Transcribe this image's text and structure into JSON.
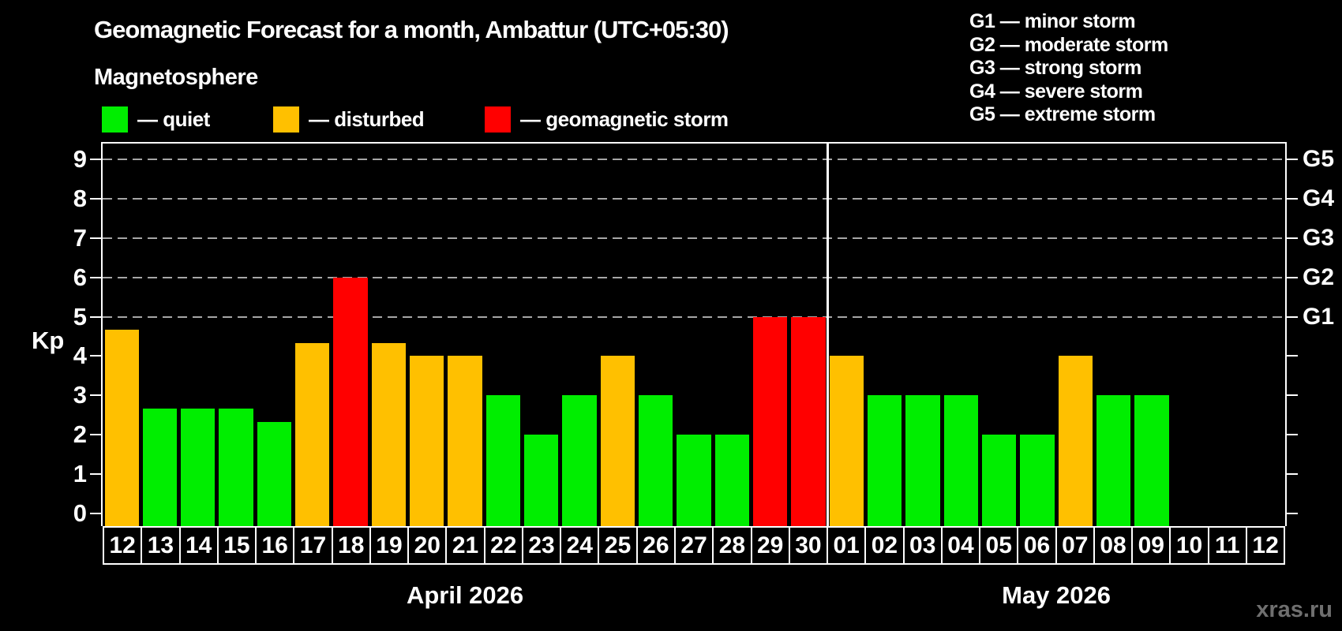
{
  "header": {
    "title": "Geomagnetic Forecast for a month, Ambattur (UTC+05:30)",
    "subtitle": "Magnetosphere",
    "watermark": "xras.ru"
  },
  "legend": {
    "items": [
      {
        "label": "— quiet",
        "status": "quiet"
      },
      {
        "label": "— disturbed",
        "status": "disturbed"
      },
      {
        "label": "— geomagnetic storm",
        "status": "storm"
      }
    ]
  },
  "g_legend": [
    "G1 — minor storm",
    "G2 — moderate storm",
    "G3 — strong storm",
    "G4 — severe storm",
    "G5 — extreme storm"
  ],
  "colors": {
    "quiet": "#00ee00",
    "disturbed": "#ffc000",
    "storm": "#ff0000",
    "watermark": "#6f6f6f"
  },
  "chart_data": {
    "type": "bar",
    "title": "Geomagnetic Forecast for a month, Ambattur (UTC+05:30)",
    "ylabel": "Kp",
    "ylim": [
      0,
      9
    ],
    "yticks": [
      0,
      1,
      2,
      3,
      4,
      5,
      6,
      7,
      8,
      9
    ],
    "grid_levels": [
      5,
      6,
      7,
      8,
      9
    ],
    "right_axis": [
      {
        "kp": 5,
        "label": "G1"
      },
      {
        "kp": 6,
        "label": "G2"
      },
      {
        "kp": 7,
        "label": "G3"
      },
      {
        "kp": 8,
        "label": "G4"
      },
      {
        "kp": 9,
        "label": "G5"
      }
    ],
    "months": [
      {
        "label": "April 2026",
        "start_index": 0,
        "count": 19
      },
      {
        "label": "May 2026",
        "start_index": 19,
        "count": 12
      }
    ],
    "days": [
      {
        "date": "12",
        "kp": 4.67,
        "status": "disturbed"
      },
      {
        "date": "13",
        "kp": 2.67,
        "status": "quiet"
      },
      {
        "date": "14",
        "kp": 2.67,
        "status": "quiet"
      },
      {
        "date": "15",
        "kp": 2.67,
        "status": "quiet"
      },
      {
        "date": "16",
        "kp": 2.33,
        "status": "quiet"
      },
      {
        "date": "17",
        "kp": 4.33,
        "status": "disturbed"
      },
      {
        "date": "18",
        "kp": 6.0,
        "status": "storm"
      },
      {
        "date": "19",
        "kp": 4.33,
        "status": "disturbed"
      },
      {
        "date": "20",
        "kp": 4.0,
        "status": "disturbed"
      },
      {
        "date": "21",
        "kp": 4.0,
        "status": "disturbed"
      },
      {
        "date": "22",
        "kp": 3.0,
        "status": "quiet"
      },
      {
        "date": "23",
        "kp": 2.0,
        "status": "quiet"
      },
      {
        "date": "24",
        "kp": 3.0,
        "status": "quiet"
      },
      {
        "date": "25",
        "kp": 4.0,
        "status": "disturbed"
      },
      {
        "date": "26",
        "kp": 3.0,
        "status": "quiet"
      },
      {
        "date": "27",
        "kp": 2.0,
        "status": "quiet"
      },
      {
        "date": "28",
        "kp": 2.0,
        "status": "quiet"
      },
      {
        "date": "29",
        "kp": 5.0,
        "status": "storm"
      },
      {
        "date": "30",
        "kp": 5.0,
        "status": "storm"
      },
      {
        "date": "01",
        "kp": 4.0,
        "status": "disturbed"
      },
      {
        "date": "02",
        "kp": 3.0,
        "status": "quiet"
      },
      {
        "date": "03",
        "kp": 3.0,
        "status": "quiet"
      },
      {
        "date": "04",
        "kp": 3.0,
        "status": "quiet"
      },
      {
        "date": "05",
        "kp": 2.0,
        "status": "quiet"
      },
      {
        "date": "06",
        "kp": 2.0,
        "status": "quiet"
      },
      {
        "date": "07",
        "kp": 4.0,
        "status": "disturbed"
      },
      {
        "date": "08",
        "kp": 3.0,
        "status": "quiet"
      },
      {
        "date": "09",
        "kp": 3.0,
        "status": "quiet"
      },
      {
        "date": "10",
        "kp": null,
        "status": null
      },
      {
        "date": "11",
        "kp": null,
        "status": null
      },
      {
        "date": "12",
        "kp": null,
        "status": null
      }
    ]
  }
}
